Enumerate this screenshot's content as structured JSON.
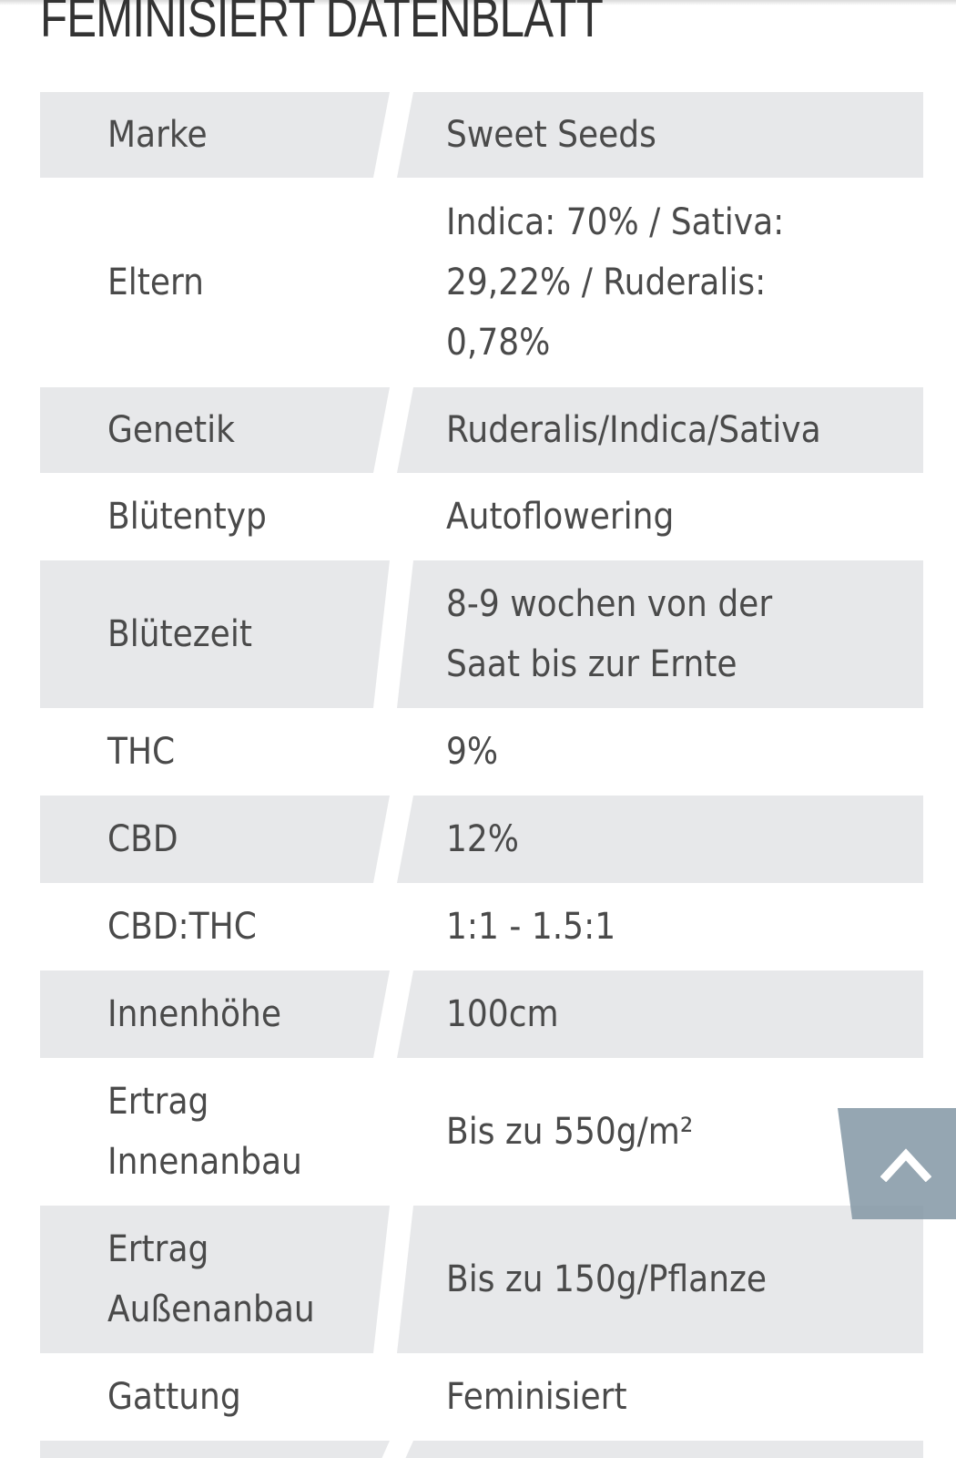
{
  "title": "FEMINISIERT DATENBLATT",
  "rows": [
    {
      "label": "Marke",
      "value": "Sweet Seeds"
    },
    {
      "label": "Eltern",
      "value": "Indica: 70% / Sativa: 29,22% / Ruderalis: 0,78%"
    },
    {
      "label": "Genetik",
      "value": "Ruderalis/Indica/Sativa"
    },
    {
      "label": "Blütentyp",
      "value": "Autoflowering"
    },
    {
      "label": "Blütezeit",
      "value": "8-9 wochen von der Saat bis zur Ernte"
    },
    {
      "label": "THC",
      "value": "9%"
    },
    {
      "label": "CBD",
      "value": "12%"
    },
    {
      "label": "CBD:THC",
      "value": "1:1 - 1.5:1"
    },
    {
      "label": "Innenhöhe",
      "value": "100cm"
    },
    {
      "label": "Ertrag Innenanbau",
      "value": "Bis zu 550g/m²"
    },
    {
      "label": "Ertrag Außenanbau",
      "value": "Bis zu 150g/Pflanze"
    },
    {
      "label": "Gattung",
      "value": "Feminisiert"
    }
  ],
  "back_to_top": {
    "icon": "chevron-up-icon"
  }
}
